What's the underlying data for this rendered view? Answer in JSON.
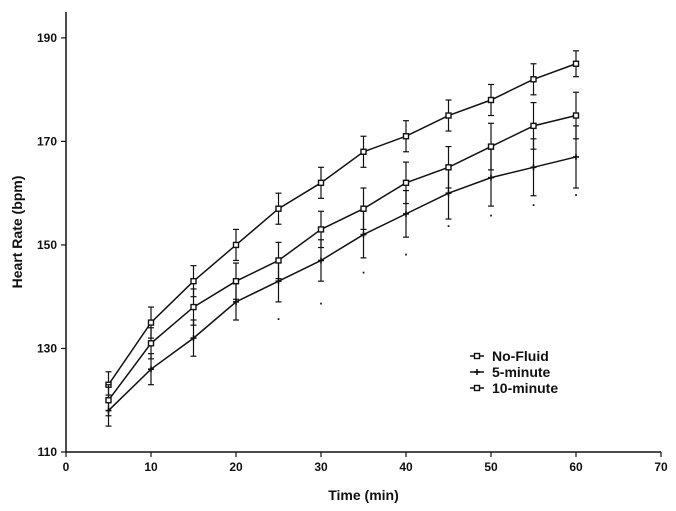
{
  "chart_data": {
    "type": "line",
    "title": "",
    "xlabel": "Time (min)",
    "ylabel": "Heart Rate (bpm)",
    "xlim": [
      0,
      70
    ],
    "ylim": [
      110,
      195
    ],
    "xticks": [
      0,
      10,
      20,
      30,
      40,
      50,
      60,
      70
    ],
    "yticks": [
      110,
      130,
      150,
      170,
      190
    ],
    "xtick_labels": [
      "0",
      "10",
      "20",
      "30",
      "40",
      "50",
      "60",
      "70"
    ],
    "ytick_labels": [
      "110",
      "130",
      "150",
      "170",
      "190"
    ],
    "grid": false,
    "legend_position": "center-right",
    "x": [
      5,
      10,
      15,
      20,
      25,
      30,
      35,
      40,
      45,
      50,
      55,
      60
    ],
    "series": [
      {
        "name": "No-Fluid",
        "marker": "square",
        "values": [
          123,
          135,
          143,
          150,
          157,
          162,
          168,
          171,
          175,
          178,
          182,
          185
        ],
        "error": [
          2.5,
          3,
          3,
          3,
          3,
          3,
          3,
          3,
          3,
          3,
          3,
          2.5
        ]
      },
      {
        "name": "5-minute",
        "marker": "plus",
        "values": [
          118,
          126,
          132,
          139,
          143,
          147,
          152,
          156,
          160,
          163,
          165,
          167
        ],
        "error": [
          3,
          3,
          3.5,
          3.5,
          4,
          4,
          4.5,
          4.5,
          5,
          5.5,
          5.5,
          6
        ]
      },
      {
        "name": "10-minute",
        "marker": "square",
        "values": [
          120,
          131,
          138,
          143,
          147,
          153,
          157,
          162,
          165,
          169,
          173,
          175
        ],
        "error": [
          3,
          3,
          3.5,
          3.5,
          3.5,
          3.5,
          4,
          4,
          4,
          4.5,
          4.5,
          4.5
        ]
      }
    ],
    "annotations": [
      {
        "text": ".",
        "x": 25,
        "y": 135.5
      },
      {
        "text": ".",
        "x": 30,
        "y": 138.5
      },
      {
        "text": ".",
        "x": 35,
        "y": 144.5
      },
      {
        "text": ".",
        "x": 40,
        "y": 148
      },
      {
        "text": ".",
        "x": 45,
        "y": 153.5
      },
      {
        "text": ".",
        "x": 50,
        "y": 155.5
      },
      {
        "text": ".",
        "x": 55,
        "y": 157.5
      },
      {
        "text": ".",
        "x": 60,
        "y": 159.5
      }
    ],
    "colors": {
      "line": "#111111",
      "background": "#ffffff"
    }
  }
}
